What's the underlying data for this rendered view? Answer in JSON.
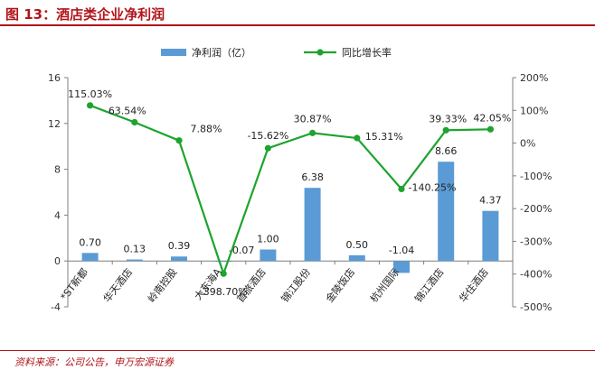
{
  "header": {
    "title": "图 13：酒店类企业净利润"
  },
  "footer": {
    "source": "资料来源：公司公告，申万宏源证券"
  },
  "chart_data": {
    "type": "bar+line",
    "categories": [
      "*ST新都",
      "华天酒店",
      "岭南控股",
      "大东海A",
      "首旅酒店",
      "锦江股份",
      "金陵饭店",
      "杭州国际",
      "锦江酒店",
      "华住酒店"
    ],
    "series": [
      {
        "name": "净利润（亿）",
        "type": "bar",
        "axis": "left",
        "values": [
          0.7,
          0.13,
          0.39,
          -0.07,
          1.0,
          6.38,
          0.5,
          -1.04,
          8.66,
          4.37
        ],
        "labels": [
          "0.70",
          "0.13",
          "0.39",
          "-0.07",
          "1.00",
          "6.38",
          "0.50",
          "-1.04",
          "8.66",
          "4.37"
        ],
        "color": "#5b9bd5"
      },
      {
        "name": "同比增长率",
        "type": "line",
        "axis": "right",
        "values": [
          115.03,
          63.54,
          7.88,
          -398.7,
          -15.62,
          30.87,
          15.31,
          -140.25,
          39.33,
          42.05
        ],
        "labels": [
          "115.03%",
          "63.54%",
          "7.88%",
          "-398.70%",
          "-15.62%",
          "30.87%",
          "15.31%",
          "-140.25%",
          "39.33%",
          "42.05%"
        ],
        "color": "#1ea32e"
      }
    ],
    "y_left": {
      "min": -4,
      "max": 16,
      "ticks": [
        -4,
        0,
        4,
        8,
        12,
        16
      ],
      "tick_labels": [
        "-4",
        "0",
        "4",
        "8",
        "12",
        "16"
      ]
    },
    "y_right": {
      "min": -500,
      "max": 200,
      "ticks": [
        -500,
        -400,
        -300,
        -200,
        -100,
        0,
        100,
        200
      ],
      "tick_labels": [
        "-500%",
        "-400%",
        "-300%",
        "-200%",
        "-100%",
        "0%",
        "100%",
        "200%"
      ]
    },
    "grid": false,
    "legend_position": "top"
  }
}
